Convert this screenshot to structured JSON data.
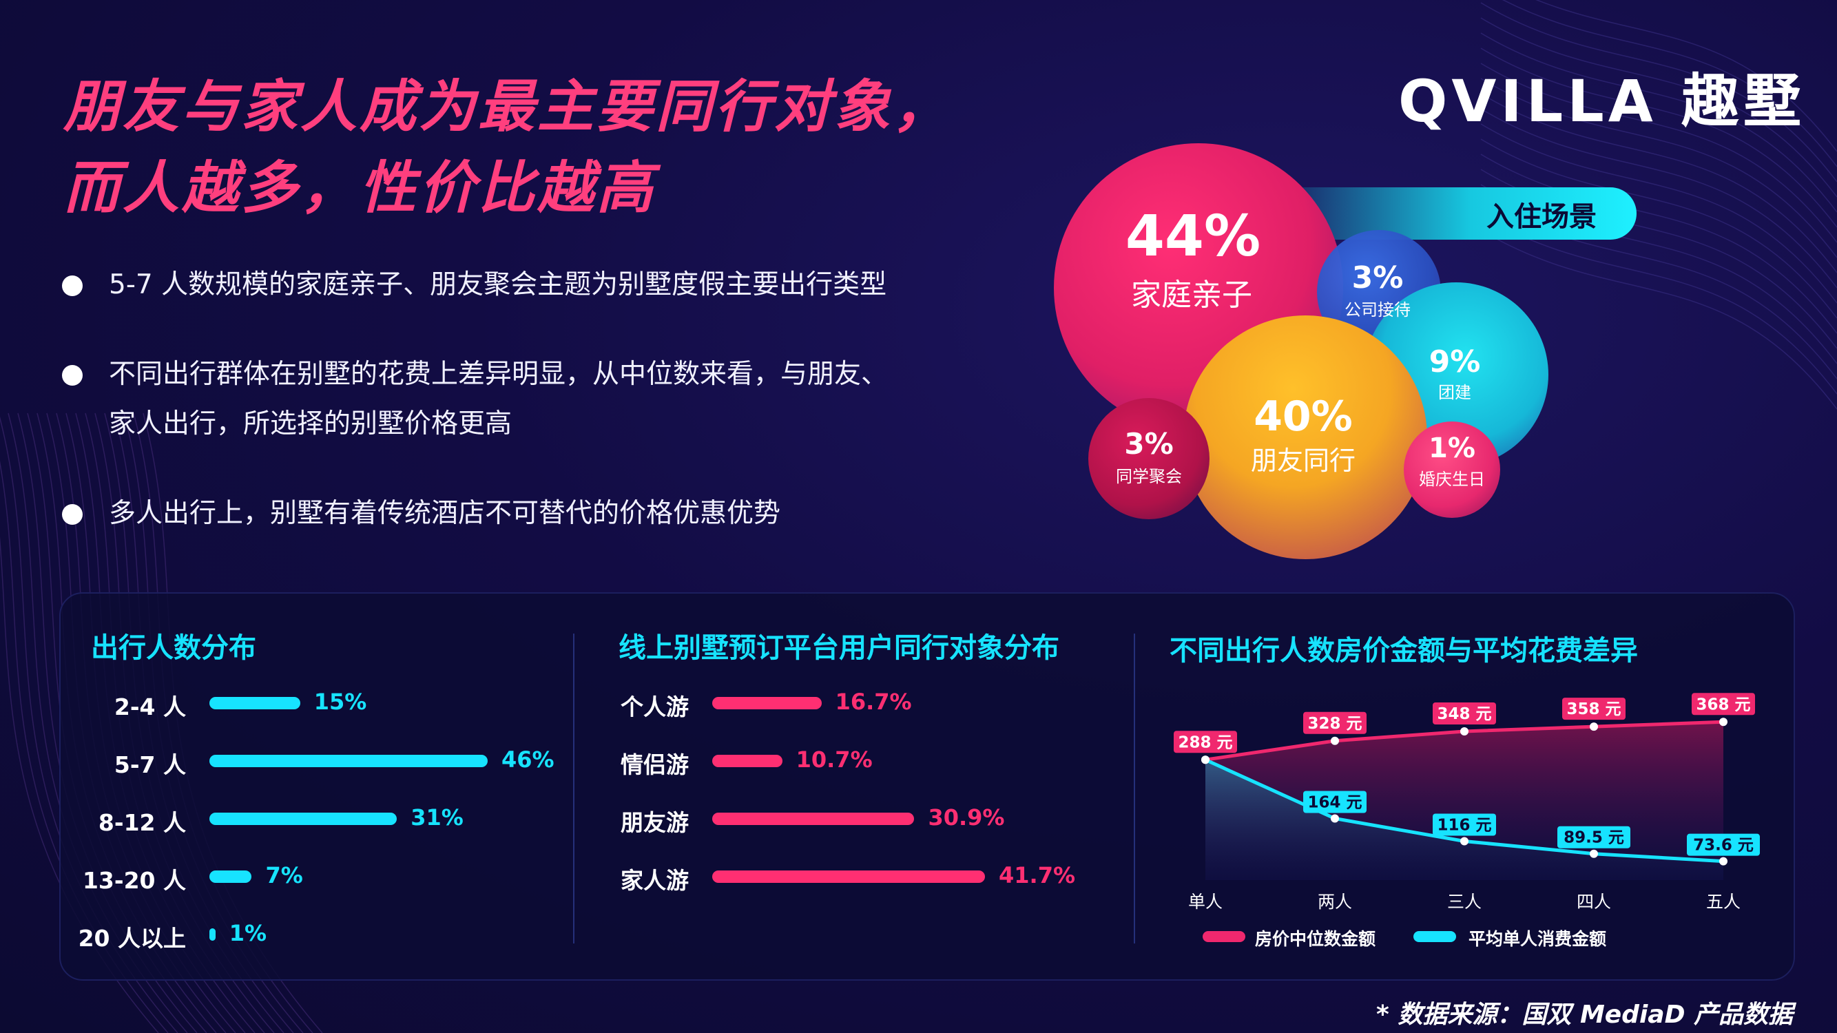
{
  "title": {
    "line1": "朋友与家人成为最主要同行对象，",
    "line2": "而人越多，性价比越高"
  },
  "logo": "QVILLA 趣墅",
  "bullets": [
    "5-7 人数规模的家庭亲子、朋友聚会主题为别墅度假主要出行类型",
    "不同出行群体在别墅的花费上差异明显，从中位数来看，与朋友、",
    "家人出行，所选择的别墅价格更高",
    "多人出行上，别墅有着传统酒店不可替代的价格优惠优势"
  ],
  "bubble_chart": {
    "tag": "入住场景",
    "items": [
      {
        "label": "家庭亲子",
        "pct": "44%",
        "value": 44,
        "color": "#f0286e"
      },
      {
        "label": "公司接待",
        "pct": "3%",
        "value": 3,
        "color": "#2f5fd6"
      },
      {
        "label": "团建",
        "pct": "9%",
        "value": 9,
        "color": "#16c9e0"
      },
      {
        "label": "朋友同行",
        "pct": "40%",
        "value": 40,
        "color": "#f5a623"
      },
      {
        "label": "同学聚会",
        "pct": "3%",
        "value": 3,
        "color": "#c3154f"
      },
      {
        "label": "婚庆生日",
        "pct": "1%",
        "value": 1,
        "color": "#ff3f7e"
      }
    ]
  },
  "panel1": {
    "title": "出行人数分布",
    "rows": [
      {
        "label": "2-4 人",
        "value": 15,
        "text": "15%"
      },
      {
        "label": "5-7 人",
        "value": 46,
        "text": "46%"
      },
      {
        "label": "8-12 人",
        "value": 31,
        "text": "31%"
      },
      {
        "label": "13-20 人",
        "value": 7,
        "text": "7%"
      },
      {
        "label": "20 人以上",
        "value": 1,
        "text": "1%"
      }
    ],
    "color": "#17e3ff"
  },
  "panel2": {
    "title": "线上别墅预订平台用户同行对象分布",
    "rows": [
      {
        "label": "个人游",
        "value": 16.7,
        "text": "16.7%"
      },
      {
        "label": "情侣游",
        "value": 10.7,
        "text": "10.7%"
      },
      {
        "label": "朋友游",
        "value": 30.9,
        "text": "30.9%"
      },
      {
        "label": "家人游",
        "value": 41.7,
        "text": "41.7%"
      }
    ],
    "color": "#ff2f72"
  },
  "chart_data": {
    "type": "line",
    "title": "不同出行人数房价金额与平均花费差异",
    "categories": [
      "单人",
      "两人",
      "三人",
      "四人",
      "五人"
    ],
    "series": [
      {
        "name": "房价中位数金额",
        "values": [
          288,
          328,
          348,
          358,
          368
        ],
        "labels": [
          "288 元",
          "328 元",
          "348 元",
          "358 元",
          "368 元"
        ],
        "color": "#f0286e"
      },
      {
        "name": "平均单人消费金额",
        "values": [
          288,
          164,
          116,
          89.5,
          73.6
        ],
        "labels": [
          "",
          "164 元",
          "116 元",
          "89.5 元",
          "73.6 元"
        ],
        "color": "#17e3ff"
      }
    ]
  },
  "footer": "* 数据来源：国双 MediaD 产品数据"
}
